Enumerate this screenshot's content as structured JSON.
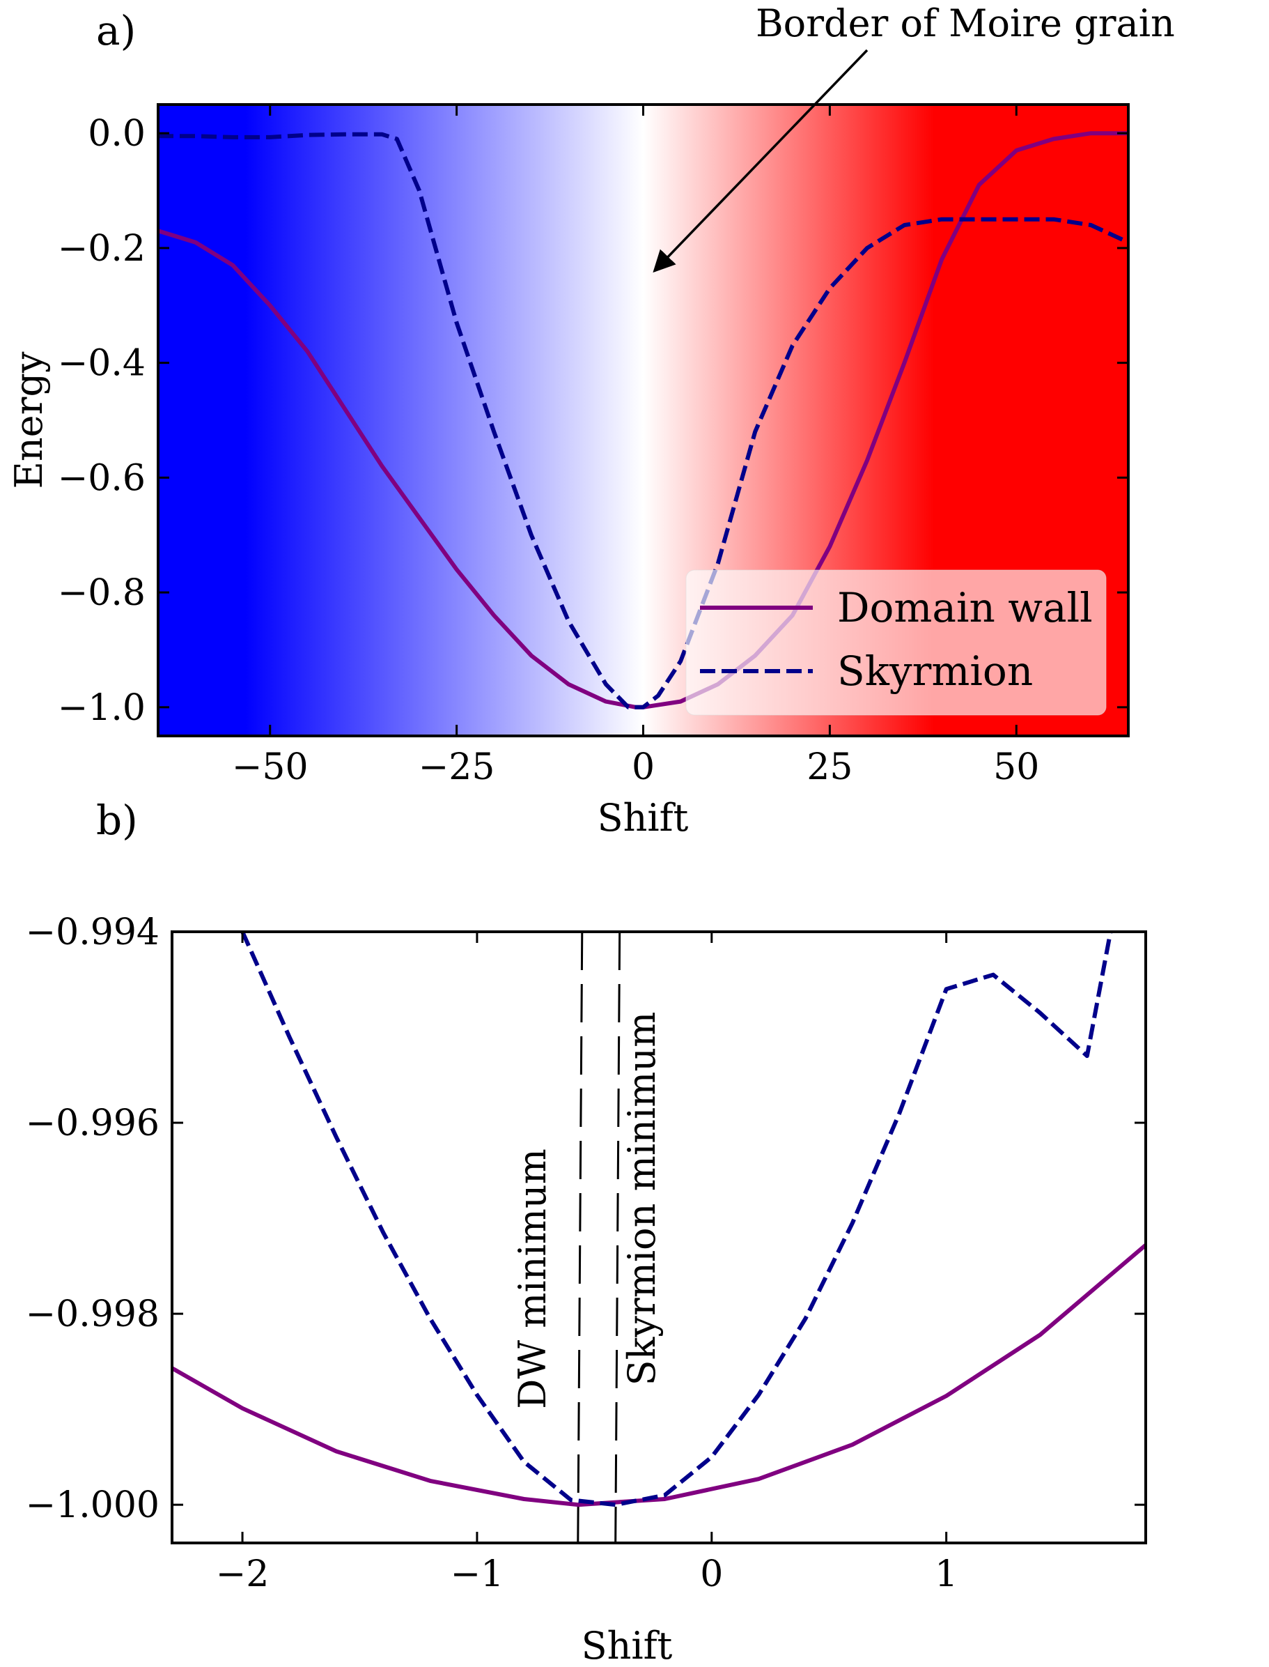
{
  "chart_data": [
    {
      "panel_label": "a)",
      "type": "line",
      "xlabel": "Shift",
      "ylabel": "Energy",
      "xlim": [
        -65,
        65
      ],
      "ylim": [
        -1.05,
        0.05
      ],
      "xticks": [
        -50,
        -25,
        0,
        25,
        50
      ],
      "xtick_labels": [
        "−50",
        "−25",
        "0",
        "25",
        "50"
      ],
      "yticks": [
        0.0,
        -0.2,
        -0.4,
        -0.6,
        -0.8,
        -1.0
      ],
      "ytick_labels": [
        "0.0",
        "−0.2",
        "−0.4",
        "−0.6",
        "−0.8",
        "−1.0"
      ],
      "background": {
        "type": "gradient",
        "from_color": "#0000ff",
        "mid_color": "#ffffff",
        "to_color": "#ff0000",
        "mid_x": 0
      },
      "annotation": {
        "text": "Border of Moire grain",
        "arrow_target": {
          "x": 1.5,
          "y": -0.24
        }
      },
      "legend": {
        "position": "lower-right",
        "entries": [
          {
            "label": "Domain wall",
            "color": "#800080",
            "style": "solid"
          },
          {
            "label": "Skyrmion",
            "color": "#00008b",
            "style": "dashed"
          }
        ]
      },
      "series": [
        {
          "name": "Domain wall",
          "color": "#800080",
          "style": "solid",
          "x": [
            -65,
            -60,
            -55,
            -50,
            -45,
            -40,
            -35,
            -30,
            -25,
            -20,
            -15,
            -10,
            -5,
            -1,
            0,
            5,
            10,
            15,
            20,
            25,
            30,
            35,
            40,
            45,
            50,
            55,
            60,
            65
          ],
          "y": [
            -0.17,
            -0.19,
            -0.23,
            -0.3,
            -0.38,
            -0.48,
            -0.58,
            -0.67,
            -0.76,
            -0.84,
            -0.91,
            -0.96,
            -0.99,
            -1.0,
            -1.0,
            -0.99,
            -0.96,
            -0.91,
            -0.84,
            -0.72,
            -0.57,
            -0.4,
            -0.22,
            -0.09,
            -0.03,
            -0.01,
            0.0,
            0.0
          ]
        },
        {
          "name": "Skyrmion",
          "color": "#00008b",
          "style": "dashed",
          "x": [
            -65,
            -60,
            -55,
            -50,
            -45,
            -40,
            -35,
            -33,
            -30,
            -25,
            -20,
            -15,
            -10,
            -5,
            -2,
            0,
            2,
            5,
            10,
            15,
            20,
            25,
            30,
            35,
            40,
            45,
            50,
            55,
            60,
            65
          ],
          "y": [
            -0.005,
            -0.005,
            -0.007,
            -0.007,
            -0.003,
            -0.002,
            -0.002,
            -0.01,
            -0.1,
            -0.33,
            -0.52,
            -0.7,
            -0.85,
            -0.96,
            -1.0,
            -1.0,
            -0.98,
            -0.92,
            -0.75,
            -0.52,
            -0.37,
            -0.27,
            -0.2,
            -0.16,
            -0.15,
            -0.15,
            -0.15,
            -0.15,
            -0.16,
            -0.19
          ]
        }
      ]
    },
    {
      "panel_label": "b)",
      "type": "line",
      "xlabel": "Shift",
      "ylabel": "",
      "xlim": [
        -2.3,
        1.85
      ],
      "ylim": [
        -1.0004,
        -0.994
      ],
      "xticks": [
        -2,
        -1,
        0,
        1
      ],
      "xtick_labels": [
        "−2",
        "−1",
        "0",
        "1"
      ],
      "yticks": [
        -0.994,
        -0.996,
        -0.998,
        -1.0
      ],
      "ytick_labels": [
        "−0.994",
        "−0.996",
        "−0.998",
        "−1.000"
      ],
      "vlines": [
        {
          "x": -0.57,
          "label": "DW minimum"
        },
        {
          "x": -0.41,
          "label": "Skyrmion minimum"
        }
      ],
      "series": [
        {
          "name": "Domain wall",
          "color": "#800080",
          "style": "solid",
          "x": [
            -2.3,
            -2.0,
            -1.6,
            -1.2,
            -0.8,
            -0.57,
            -0.2,
            0.2,
            0.6,
            1.0,
            1.4,
            1.85
          ],
          "y": [
            -0.99857,
            -0.99899,
            -0.99944,
            -0.99975,
            -0.99994,
            -1.0,
            -0.99994,
            -0.99973,
            -0.99937,
            -0.99886,
            -0.99822,
            -0.99728
          ]
        },
        {
          "name": "Skyrmion",
          "color": "#00008b",
          "style": "dashed",
          "x": [
            -2.0,
            -1.8,
            -1.6,
            -1.4,
            -1.2,
            -1.0,
            -0.8,
            -0.6,
            -0.41,
            -0.2,
            0.0,
            0.2,
            0.4,
            0.6,
            0.8,
            1.0,
            1.2,
            1.4,
            1.6,
            1.7
          ],
          "y": [
            -0.994,
            -0.9951,
            -0.99615,
            -0.99715,
            -0.99805,
            -0.99885,
            -0.99955,
            -0.99995,
            -1.0,
            -0.9999,
            -0.9995,
            -0.99885,
            -0.99805,
            -0.99705,
            -0.9959,
            -0.9946,
            -0.99445,
            -0.99485,
            -0.9953,
            -0.994
          ]
        }
      ]
    }
  ]
}
